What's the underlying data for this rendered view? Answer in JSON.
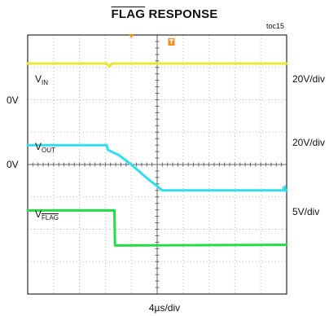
{
  "header": {
    "title_overline": "FLAG",
    "title_rest": " RESPONSE",
    "toc": "toc15"
  },
  "labels": {
    "ch1_main": "V",
    "ch1_sub": "IN",
    "ch2_main": "V",
    "ch2_sub": "OUT",
    "ch3_main": "V",
    "ch3_sub": "FLAG",
    "zero1": "0V",
    "zero2": "0V",
    "scale1": "20V/div",
    "scale2": "20V/div",
    "scale3": "5V/div",
    "timebase": "4µs/div"
  },
  "colors": {
    "vin": "#e8e832",
    "vout": "#33ddee",
    "flag": "#22dd44",
    "trigger": "#ff8c1a",
    "grid": "#bbbbbb",
    "frame": "#000000"
  },
  "chart_data": {
    "type": "line",
    "title": "FLAG RESPONSE",
    "xlabel": "4µs/div",
    "x_divisions": 10,
    "y_divisions": 8,
    "xlim": [
      0,
      10
    ],
    "ylim": [
      0,
      8
    ],
    "grid": true,
    "series": [
      {
        "name": "VIN",
        "scale": "20V/div",
        "x": [
          0,
          3.05,
          3.15,
          3.25,
          10
        ],
        "y": [
          7.12,
          7.12,
          7.03,
          7.12,
          7.12
        ]
      },
      {
        "name": "VOUT",
        "scale": "20V/div",
        "x": [
          0,
          3.05,
          3.1,
          3.5,
          4.0,
          4.5,
          5.2,
          10
        ],
        "y": [
          4.6,
          4.6,
          4.45,
          4.3,
          4.0,
          3.65,
          3.2,
          3.2
        ]
      },
      {
        "name": "VFLAG",
        "scale": "5V/div",
        "x": [
          0,
          3.35,
          3.37,
          10
        ],
        "y": [
          2.58,
          2.58,
          1.5,
          1.52
        ]
      }
    ],
    "markers": {
      "trigger_x": 4.0,
      "vout_ground_y": 3.28
    }
  }
}
